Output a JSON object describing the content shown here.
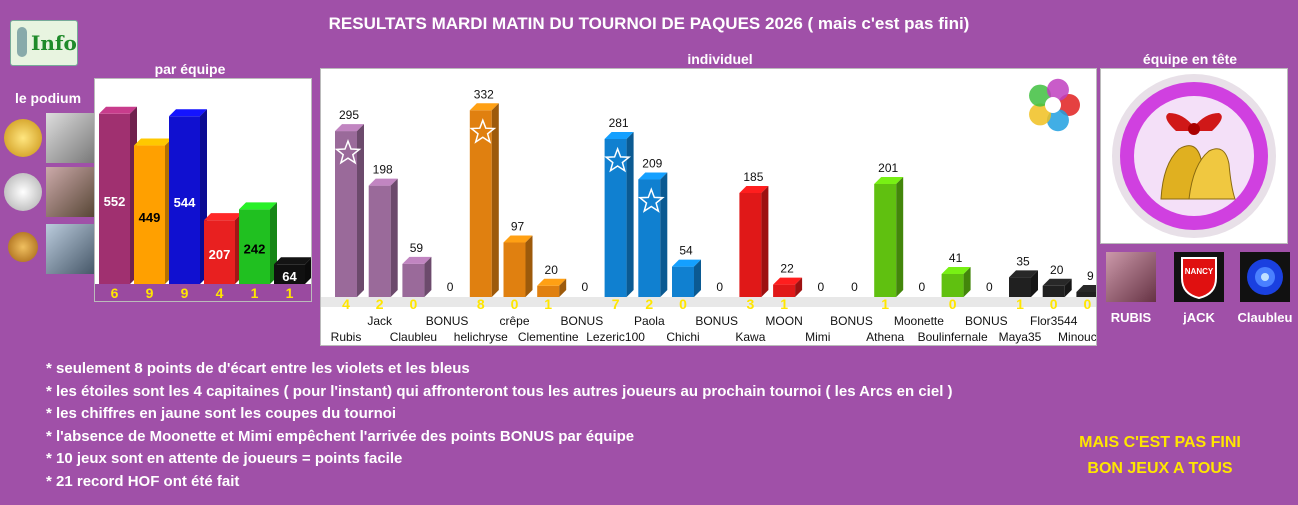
{
  "header": {
    "title": "RESULTATS MARDI MATIN DU TOURNOI DE PAQUES 2026 ( mais c'est pas fini)",
    "logo_text": "Info"
  },
  "labels": {
    "team": "par équipe",
    "individual": "individuel",
    "lead": "équipe en tête",
    "podium": "le podium"
  },
  "team_chart_data": {
    "type": "bar",
    "categories": [
      "violets",
      "oranges",
      "bleus",
      "rouges",
      "verts",
      "noirs"
    ],
    "values": [
      552,
      449,
      544,
      207,
      242,
      64
    ],
    "cups": [
      6,
      9,
      9,
      4,
      1,
      1
    ],
    "colors": [
      "#a03070",
      "#ffa000",
      "#1010d0",
      "#e82020",
      "#20c020",
      "#101010"
    ],
    "value_colors": [
      "#ffffff",
      "#000000",
      "#ffffff",
      "#ffffff",
      "#000000",
      "#ffffff"
    ],
    "ylim": [
      0,
      600
    ]
  },
  "chart_data": {
    "type": "bar",
    "ylim": [
      0,
      360
    ],
    "bars": [
      {
        "name": "Rubis",
        "value": 295,
        "cups": 4,
        "color": "#9a6a9a",
        "star": true,
        "row": 1
      },
      {
        "name": "Jack",
        "value": 198,
        "cups": 2,
        "color": "#9a6a9a",
        "star": false,
        "row": 0
      },
      {
        "name": "Claubleu",
        "value": 59,
        "cups": 0,
        "color": "#9a6a9a",
        "star": false,
        "row": 1
      },
      {
        "name": "BONUS",
        "value": 0,
        "cups": null,
        "color": "#9a6a9a",
        "star": false,
        "row": 0
      },
      {
        "name": "helichryse",
        "value": 332,
        "cups": 8,
        "color": "#e08010",
        "star": true,
        "row": 1
      },
      {
        "name": "crêpe",
        "value": 97,
        "cups": 0,
        "color": "#e08010",
        "star": false,
        "row": 0
      },
      {
        "name": "Clementine",
        "value": 20,
        "cups": 1,
        "color": "#e08010",
        "star": false,
        "row": 1
      },
      {
        "name": "BONUS",
        "value": 0,
        "cups": null,
        "color": "#e08010",
        "star": false,
        "row": 0
      },
      {
        "name": "Lezeric100",
        "value": 281,
        "cups": 7,
        "color": "#1080d0",
        "star": true,
        "row": 1
      },
      {
        "name": "Paola",
        "value": 209,
        "cups": 2,
        "color": "#1080d0",
        "star": true,
        "row": 0
      },
      {
        "name": "Chichi",
        "value": 54,
        "cups": 0,
        "color": "#1080d0",
        "star": false,
        "row": 1
      },
      {
        "name": "BONUS",
        "value": 0,
        "cups": null,
        "color": "#1080d0",
        "star": false,
        "row": 0
      },
      {
        "name": "Kawa",
        "value": 185,
        "cups": 3,
        "color": "#e01818",
        "star": false,
        "row": 1
      },
      {
        "name": "MOON",
        "value": 22,
        "cups": 1,
        "color": "#e01818",
        "star": false,
        "row": 0
      },
      {
        "name": "Mimi",
        "value": 0,
        "cups": null,
        "color": "#e01818",
        "star": false,
        "row": 1
      },
      {
        "name": "BONUS",
        "value": 0,
        "cups": null,
        "color": "#e01818",
        "star": false,
        "row": 0
      },
      {
        "name": "Athena",
        "value": 201,
        "cups": 1,
        "color": "#60c010",
        "star": false,
        "row": 1
      },
      {
        "name": "Moonette",
        "value": 0,
        "cups": null,
        "color": "#60c010",
        "star": false,
        "row": 0
      },
      {
        "name": "Boulinfernale",
        "value": 41,
        "cups": 0,
        "color": "#60c010",
        "star": false,
        "row": 1
      },
      {
        "name": "BONUS",
        "value": 0,
        "cups": null,
        "color": "#60c010",
        "star": false,
        "row": 0
      },
      {
        "name": "Maya35",
        "value": 35,
        "cups": 1,
        "color": "#202020",
        "star": false,
        "row": 1
      },
      {
        "name": "Flor3544",
        "value": 20,
        "cups": 0,
        "color": "#202020",
        "star": false,
        "row": 0
      },
      {
        "name": "Minouchea",
        "value": 9,
        "cups": 0,
        "color": "#202020",
        "star": false,
        "row": 1
      }
    ]
  },
  "captains": [
    {
      "name": "RUBIS",
      "icon": "avatar"
    },
    {
      "name": "jACK",
      "icon": "nancy-logo"
    },
    {
      "name": "Claubleu",
      "icon": "blue-flower"
    }
  ],
  "nancy_text": "NANCY",
  "notes": [
    "* seulement 8 points de d'écart entre les violets et les bleus",
    "* les étoiles sont les 4 capitaines ( pour l'instant) qui affronteront tous  les autres joueurs au prochain tournoi ( les Arcs en ciel )",
    "* les chiffres en jaune sont les coupes du tournoi",
    "* l'absence de Moonette et Mimi empêchent l'arrivée des points BONUS par équipe",
    " * 10 jeux sont en attente de joueurs = points facile",
    " * 21 record HOF ont été fait"
  ],
  "footer": {
    "line1": "MAIS C'EST PAS FINI",
    "line2": "BON JEUX A TOUS"
  },
  "colors": {
    "background": "#a050a8",
    "cups": "#ffe600"
  }
}
